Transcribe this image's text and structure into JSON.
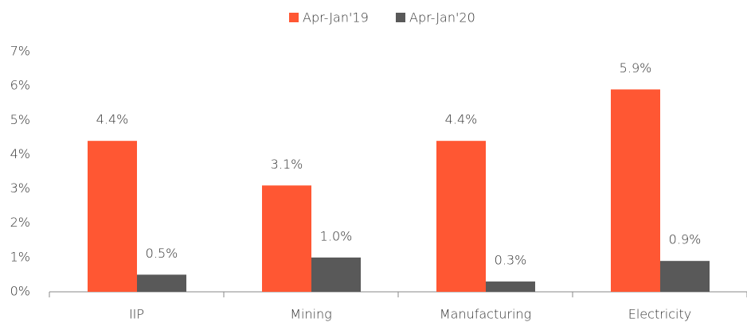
{
  "chart_data": {
    "type": "bar",
    "categories": [
      "IIP",
      "Mining",
      "Manufacturing",
      "Electricity"
    ],
    "series": [
      {
        "name": "Apr-Jan'19",
        "color": "#ff5733",
        "values": [
          4.4,
          3.1,
          4.4,
          5.9
        ],
        "value_labels": [
          "4.4%",
          "3.1%",
          "4.4%",
          "5.9%"
        ]
      },
      {
        "name": "Apr-Jan'20",
        "color": "#595959",
        "values": [
          0.5,
          1.0,
          0.3,
          0.9
        ],
        "value_labels": [
          "0.5%",
          "1.0%",
          "0.3%",
          "0.9%"
        ]
      }
    ],
    "ylim": [
      0,
      7
    ],
    "yticks": [
      {
        "value": 0,
        "label": "0%"
      },
      {
        "value": 1,
        "label": "1%"
      },
      {
        "value": 2,
        "label": "2%"
      },
      {
        "value": 3,
        "label": "3%"
      },
      {
        "value": 4,
        "label": "4%"
      },
      {
        "value": 5,
        "label": "5%"
      },
      {
        "value": 6,
        "label": "6%"
      },
      {
        "value": 7,
        "label": "7%"
      }
    ],
    "grid": false,
    "legend": "top"
  }
}
